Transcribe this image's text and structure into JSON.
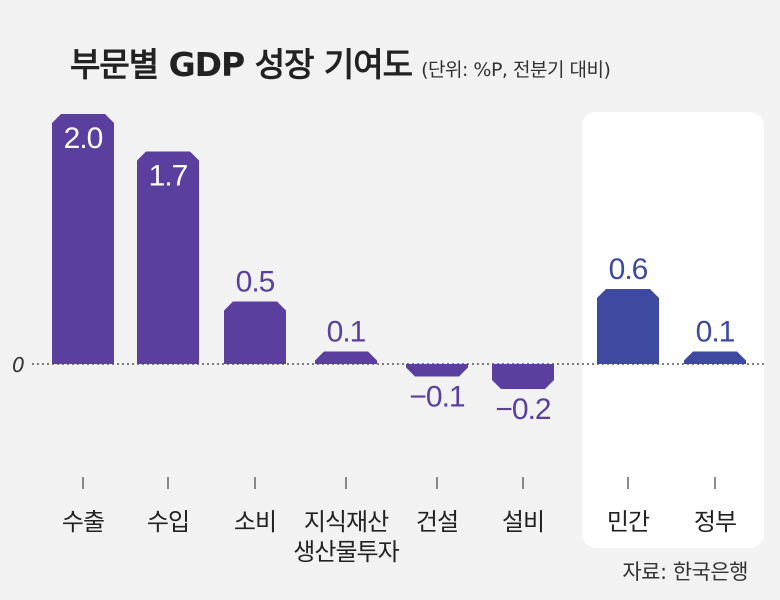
{
  "title": "부문별 GDP 성장 기여도",
  "subtitle": "(단위: %P, 전분기 대비)",
  "source": "자료: 한국은행",
  "colors": {
    "bar_default": "#5a3f9e",
    "bar_highlight": "#3e4aa0",
    "label_default": "#5a3f9e",
    "label_highlight": "#3e4aa0",
    "background": "#f2f2f2",
    "highlight_panel": "#ffffff",
    "text": "#222222"
  },
  "chart_data": {
    "type": "bar",
    "title": "부문별 GDP 성장 기여도",
    "subtitle": "(단위: %P, 전분기 대비)",
    "ylabel": "%P",
    "zero_label": "0",
    "ylim": [
      -0.3,
      2.1
    ],
    "categories": [
      {
        "lines": [
          "수출"
        ]
      },
      {
        "lines": [
          "수입"
        ]
      },
      {
        "lines": [
          "소비"
        ]
      },
      {
        "lines": [
          "지식재산",
          "생산물투자"
        ]
      },
      {
        "lines": [
          "건설"
        ]
      },
      {
        "lines": [
          "설비"
        ]
      },
      {
        "lines": [
          "민간"
        ]
      },
      {
        "lines": [
          "정부"
        ]
      }
    ],
    "values": [
      2.0,
      1.7,
      0.5,
      0.1,
      -0.1,
      -0.2,
      0.6,
      0.1
    ],
    "value_labels": [
      "2.0",
      "1.7",
      "0.5",
      "0.1",
      "−0.1",
      "−0.2",
      "0.6",
      "0.1"
    ],
    "label_inside": [
      true,
      true,
      false,
      false,
      false,
      false,
      false,
      false
    ],
    "highlighted": [
      false,
      false,
      false,
      false,
      false,
      false,
      true,
      true
    ],
    "highlight_group": [
      "민간",
      "정부"
    ]
  }
}
